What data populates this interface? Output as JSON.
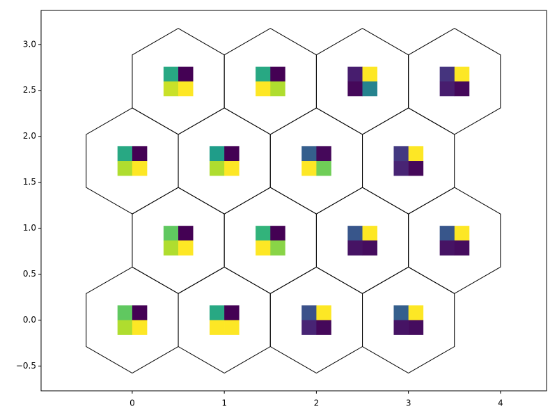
{
  "chart_data": {
    "type": "hexagon_heatmap",
    "colormap": "viridis",
    "xlim": [
      -0.99,
      4.5
    ],
    "ylim": [
      -0.77,
      3.37
    ],
    "xticks": [
      0,
      1,
      2,
      3,
      4
    ],
    "yticks": [
      {
        "value": -0.5,
        "label": "−0.5"
      },
      {
        "value": 0,
        "label": "0.0"
      },
      0.5,
      {
        "value": 1,
        "label": "1.0"
      },
      1.5,
      {
        "value": 2,
        "label": "2.0"
      },
      2.5,
      {
        "value": 3,
        "label": "3.0"
      }
    ],
    "cells": [
      {
        "x": 0,
        "y": 0,
        "values": [
          [
            0.75,
            0.0
          ],
          [
            0.88,
            1.0
          ]
        ]
      },
      {
        "x": 1,
        "y": 0,
        "values": [
          [
            0.6,
            0.0
          ],
          [
            1.0,
            1.0
          ]
        ]
      },
      {
        "x": 2,
        "y": 0,
        "values": [
          [
            0.25,
            1.0
          ],
          [
            0.1,
            0.02
          ]
        ]
      },
      {
        "x": 3,
        "y": 0,
        "values": [
          [
            0.3,
            1.0
          ],
          [
            0.05,
            0.03
          ]
        ]
      },
      {
        "x": 0.5,
        "y": 0.866,
        "values": [
          [
            0.75,
            0.0
          ],
          [
            0.88,
            1.0
          ]
        ]
      },
      {
        "x": 1.5,
        "y": 0.866,
        "values": [
          [
            0.65,
            0.0
          ],
          [
            1.0,
            0.82
          ]
        ]
      },
      {
        "x": 2.5,
        "y": 0.866,
        "values": [
          [
            0.27,
            1.0
          ],
          [
            0.05,
            0.03
          ]
        ]
      },
      {
        "x": 3.5,
        "y": 0.866,
        "values": [
          [
            0.27,
            1.0
          ],
          [
            0.05,
            0.03
          ]
        ]
      },
      {
        "x": 0,
        "y": 1.732,
        "values": [
          [
            0.6,
            0.0
          ],
          [
            0.88,
            1.0
          ]
        ]
      },
      {
        "x": 1,
        "y": 1.732,
        "values": [
          [
            0.55,
            0.0
          ],
          [
            0.88,
            1.0
          ]
        ]
      },
      {
        "x": 2,
        "y": 1.732,
        "values": [
          [
            0.3,
            0.02
          ],
          [
            1.0,
            0.78
          ]
        ]
      },
      {
        "x": 3,
        "y": 1.732,
        "values": [
          [
            0.17,
            1.0
          ],
          [
            0.1,
            0.02
          ]
        ]
      },
      {
        "x": 0.5,
        "y": 2.598,
        "values": [
          [
            0.6,
            0.0
          ],
          [
            0.92,
            1.0
          ]
        ]
      },
      {
        "x": 1.5,
        "y": 2.598,
        "values": [
          [
            0.6,
            0.0
          ],
          [
            1.0,
            0.88
          ]
        ]
      },
      {
        "x": 2.5,
        "y": 2.598,
        "values": [
          [
            0.08,
            1.0
          ],
          [
            0.02,
            0.45
          ]
        ]
      },
      {
        "x": 3.5,
        "y": 2.598,
        "values": [
          [
            0.15,
            1.0
          ],
          [
            0.08,
            0.02
          ]
        ]
      }
    ]
  }
}
